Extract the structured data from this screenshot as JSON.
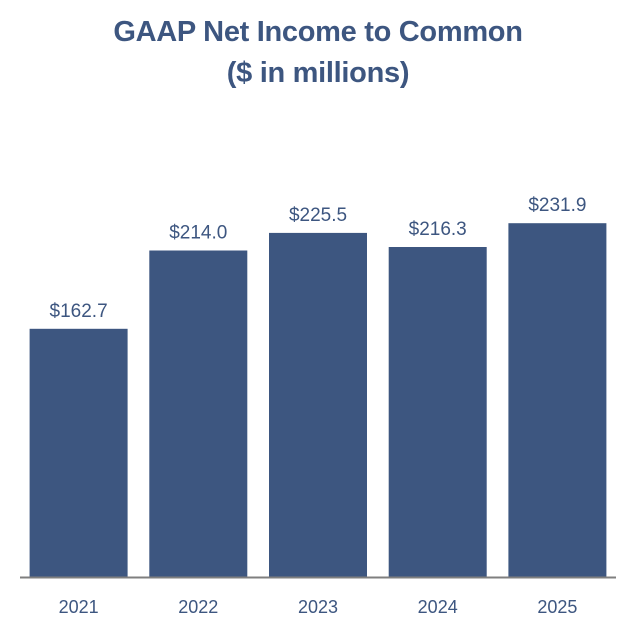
{
  "chart_data": {
    "type": "bar",
    "title": "GAAP Net Income to Common",
    "subtitle": "($ in millions)",
    "categories": [
      "2021",
      "2022",
      "2023",
      "2024",
      "2025"
    ],
    "values": [
      162.7,
      214.0,
      225.5,
      216.3,
      231.9
    ],
    "data_labels": [
      "$162.7",
      "$214.0",
      "$225.5",
      "$216.3",
      "$231.9"
    ],
    "ylim": [
      0,
      280
    ],
    "grid": false,
    "legend": "none",
    "bar_color": "#3d5680",
    "axis_color": "#7f7f7f",
    "text_color": "#3d5680"
  }
}
